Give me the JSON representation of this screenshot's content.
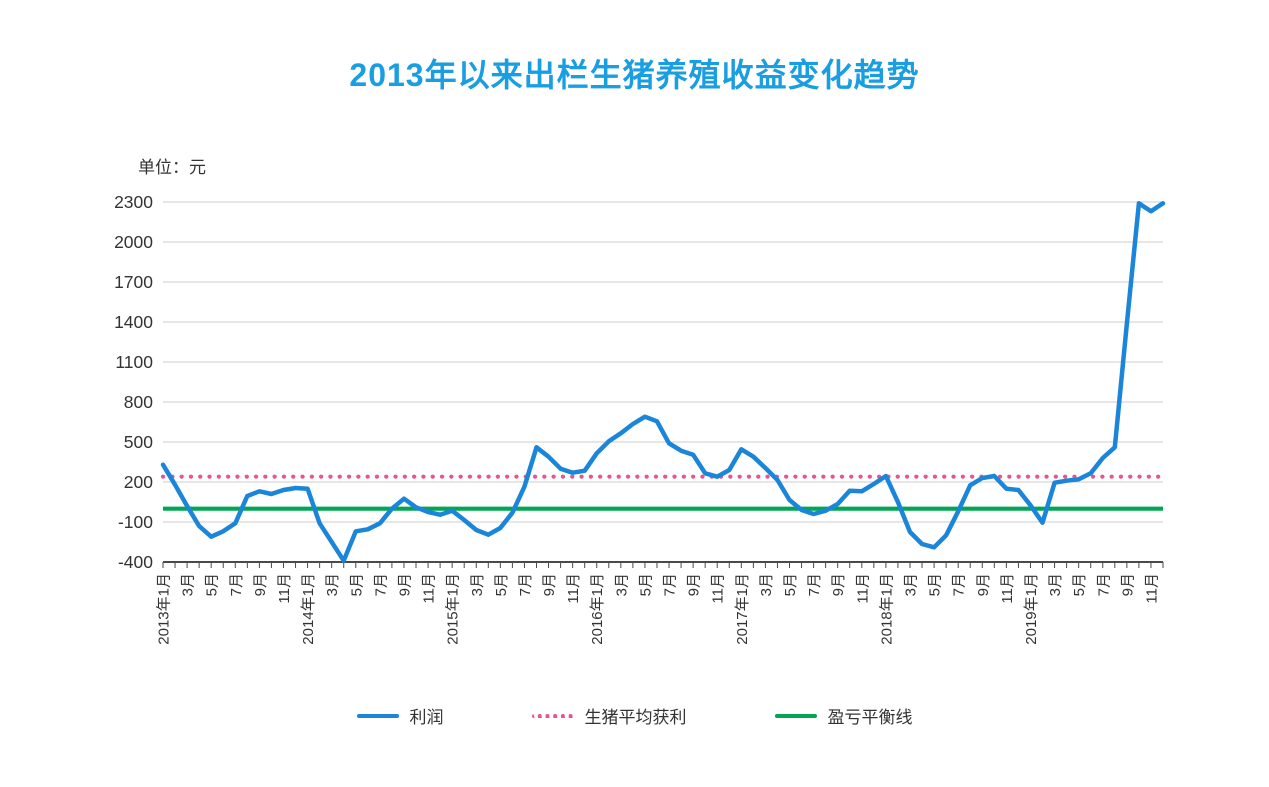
{
  "title": "2013年以来出栏生猪养殖收益变化趋势",
  "title_color": "#1a9ee2",
  "unit_label": "单位：元",
  "legend": [
    {
      "label": "利润",
      "color": "#1b86d9",
      "style": "solid"
    },
    {
      "label": "生猪平均获利",
      "color": "#e8548e",
      "style": "dotted"
    },
    {
      "label": "盈亏平衡线",
      "color": "#00a651",
      "style": "solid"
    }
  ],
  "chart_data": {
    "type": "line",
    "title": "2013年以来出栏生猪养殖收益变化趋势",
    "ylabel": "单位：元",
    "ylim": [
      -400,
      2300
    ],
    "y_ticks": [
      2300,
      2000,
      1700,
      1400,
      1100,
      800,
      500,
      200,
      -100,
      -400
    ],
    "grid": true,
    "legend_position": "bottom",
    "x_range": [
      "2013-01",
      "2019-12"
    ],
    "x_tick_labels": [
      "2013年1月",
      "3月",
      "5月",
      "7月",
      "9月",
      "11月",
      "2014年1月",
      "3月",
      "5月",
      "7月",
      "9月",
      "11月",
      "2015年1月",
      "3月",
      "5月",
      "7月",
      "9月",
      "11月",
      "2016年1月",
      "3月",
      "5月",
      "7月",
      "9月",
      "11月",
      "2017年1月",
      "3月",
      "5月",
      "7月",
      "9月",
      "11月",
      "2018年1月",
      "3月",
      "5月",
      "7月",
      "9月",
      "11月",
      "2019年1月",
      "3月",
      "5月",
      "7月",
      "9月",
      "11月"
    ],
    "months_per_label": 2,
    "series": [
      {
        "name": "利润",
        "kind": "line",
        "color": "#1b86d9",
        "values": [
          330,
          180,
          20,
          -130,
          -210,
          -170,
          -110,
          95,
          130,
          110,
          140,
          155,
          150,
          -110,
          -250,
          -390,
          -170,
          -155,
          -110,
          0,
          75,
          10,
          -25,
          -45,
          -15,
          -85,
          -160,
          -195,
          -145,
          -30,
          165,
          460,
          390,
          300,
          270,
          285,
          415,
          505,
          565,
          635,
          690,
          655,
          490,
          435,
          405,
          265,
          240,
          290,
          445,
          390,
          305,
          215,
          65,
          -10,
          -40,
          -15,
          35,
          135,
          130,
          185,
          245,
          50,
          -175,
          -265,
          -290,
          -200,
          -20,
          175,
          230,
          245,
          150,
          140,
          25,
          -105,
          195,
          210,
          220,
          265,
          380,
          460,
          1390,
          2290,
          2230,
          2290
        ]
      },
      {
        "name": "生猪平均获利",
        "kind": "constant",
        "line_style": "dotted",
        "color": "#e8548e",
        "value": 240
      },
      {
        "name": "盈亏平衡线",
        "kind": "constant",
        "line_style": "solid",
        "color": "#00a651",
        "value": 0
      }
    ],
    "axis_color": "#4a4a4a",
    "grid_color": "#cccccc",
    "tick_label_color": "#333333"
  }
}
